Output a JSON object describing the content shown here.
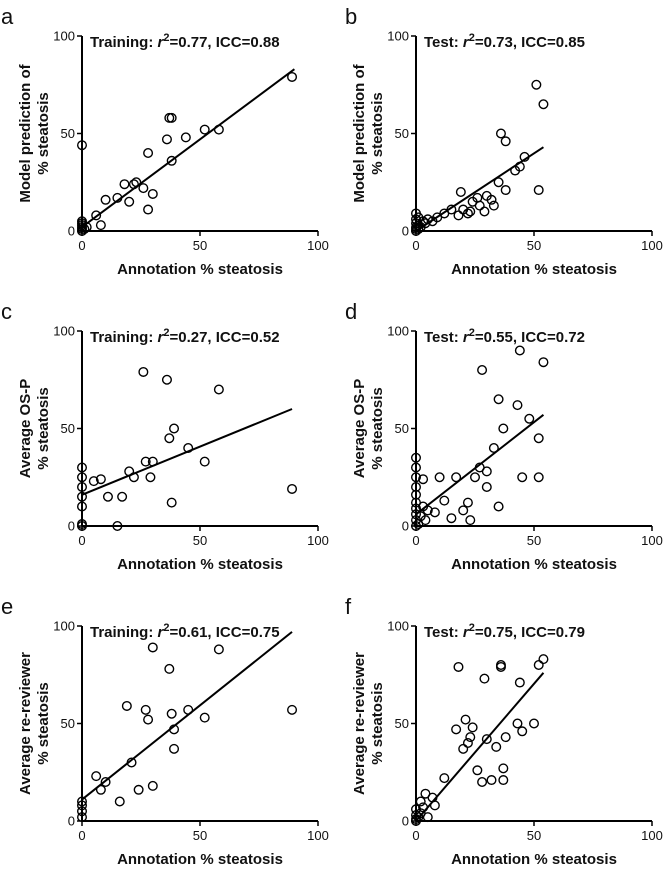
{
  "chart_data": [
    {
      "type": "scatter",
      "panel": "a",
      "title_prefix": "Training: ",
      "r2_value": "=0.77, ICC=0.88",
      "ylabel": [
        "Model prediction of",
        "% steatosis"
      ],
      "xlabel": "Annotation % steatosis",
      "xlim": [
        0,
        100
      ],
      "ylim": [
        0,
        100
      ],
      "x_ticks": [
        "0",
        "50",
        "100"
      ],
      "y_ticks": [
        "0",
        "50",
        "100"
      ],
      "fit_line": [
        [
          0,
          2
        ],
        [
          90,
          83
        ]
      ],
      "points": [
        [
          0,
          44
        ],
        [
          0,
          0
        ],
        [
          0,
          1
        ],
        [
          0,
          2
        ],
        [
          0,
          3
        ],
        [
          0,
          4
        ],
        [
          0,
          5
        ],
        [
          1,
          1
        ],
        [
          2,
          2
        ],
        [
          6,
          8
        ],
        [
          8,
          3
        ],
        [
          10,
          16
        ],
        [
          15,
          17
        ],
        [
          18,
          24
        ],
        [
          20,
          15
        ],
        [
          22,
          24
        ],
        [
          23,
          25
        ],
        [
          26,
          22
        ],
        [
          28,
          11
        ],
        [
          28,
          40
        ],
        [
          30,
          19
        ],
        [
          36,
          47
        ],
        [
          37,
          58
        ],
        [
          38,
          58
        ],
        [
          38,
          36
        ],
        [
          44,
          48
        ],
        [
          52,
          52
        ],
        [
          58,
          52
        ],
        [
          89,
          79
        ]
      ]
    },
    {
      "type": "scatter",
      "panel": "b",
      "title_prefix": "Test: ",
      "r2_value": "=0.73, ICC=0.85",
      "ylabel": [
        "Model prediction of",
        "% steatosis"
      ],
      "xlabel": "Annotation % steatosis",
      "xlim": [
        0,
        100
      ],
      "ylim": [
        0,
        100
      ],
      "x_ticks": [
        "0",
        "50",
        "100"
      ],
      "y_ticks": [
        "0",
        "50",
        "100"
      ],
      "fit_line": [
        [
          0,
          0
        ],
        [
          54,
          43
        ]
      ],
      "points": [
        [
          0,
          0
        ],
        [
          0,
          1
        ],
        [
          0,
          2
        ],
        [
          0,
          4
        ],
        [
          0,
          6
        ],
        [
          0,
          9
        ],
        [
          1,
          1
        ],
        [
          1,
          3
        ],
        [
          1,
          7
        ],
        [
          2,
          2
        ],
        [
          3,
          5
        ],
        [
          4,
          4
        ],
        [
          5,
          6
        ],
        [
          7,
          5
        ],
        [
          9,
          7
        ],
        [
          12,
          9
        ],
        [
          15,
          11
        ],
        [
          18,
          8
        ],
        [
          19,
          20
        ],
        [
          20,
          11
        ],
        [
          22,
          9
        ],
        [
          23,
          10
        ],
        [
          24,
          15
        ],
        [
          26,
          17
        ],
        [
          27,
          13
        ],
        [
          29,
          10
        ],
        [
          30,
          18
        ],
        [
          32,
          16
        ],
        [
          33,
          13
        ],
        [
          35,
          25
        ],
        [
          36,
          50
        ],
        [
          38,
          46
        ],
        [
          38,
          21
        ],
        [
          42,
          31
        ],
        [
          44,
          33
        ],
        [
          46,
          38
        ],
        [
          51,
          75
        ],
        [
          52,
          21
        ],
        [
          54,
          65
        ]
      ]
    },
    {
      "type": "scatter",
      "panel": "c",
      "title_prefix": "Training: ",
      "r2_value": "=0.27, ICC=0.52",
      "ylabel": [
        "Average OS-P",
        "% steatosis"
      ],
      "xlabel": "Annotation % steatosis",
      "xlim": [
        0,
        100
      ],
      "ylim": [
        0,
        100
      ],
      "x_ticks": [
        "0",
        "50",
        "100"
      ],
      "y_ticks": [
        "0",
        "50",
        "100"
      ],
      "fit_line": [
        [
          0,
          16
        ],
        [
          89,
          60
        ]
      ],
      "points": [
        [
          0,
          0
        ],
        [
          0,
          1
        ],
        [
          0,
          10
        ],
        [
          0,
          15
        ],
        [
          0,
          20
        ],
        [
          0,
          25
        ],
        [
          0,
          30
        ],
        [
          5,
          23
        ],
        [
          8,
          24
        ],
        [
          11,
          15
        ],
        [
          15,
          0
        ],
        [
          17,
          15
        ],
        [
          20,
          28
        ],
        [
          22,
          25
        ],
        [
          26,
          79
        ],
        [
          27,
          33
        ],
        [
          29,
          25
        ],
        [
          30,
          33
        ],
        [
          36,
          75
        ],
        [
          37,
          45
        ],
        [
          38,
          12
        ],
        [
          39,
          50
        ],
        [
          45,
          40
        ],
        [
          52,
          33
        ],
        [
          58,
          70
        ],
        [
          89,
          19
        ]
      ]
    },
    {
      "type": "scatter",
      "panel": "d",
      "title_prefix": "Test: ",
      "r2_value": "=0.55, ICC=0.72",
      "ylabel": [
        "Average OS-P",
        "% steatosis"
      ],
      "xlabel": "Annotation % steatosis",
      "xlim": [
        0,
        100
      ],
      "ylim": [
        0,
        100
      ],
      "x_ticks": [
        "0",
        "50",
        "100"
      ],
      "y_ticks": [
        "0",
        "50",
        "100"
      ],
      "fit_line": [
        [
          0,
          6
        ],
        [
          54,
          57
        ]
      ],
      "points": [
        [
          0,
          0
        ],
        [
          0,
          3
        ],
        [
          0,
          6
        ],
        [
          0,
          9
        ],
        [
          0,
          12
        ],
        [
          0,
          16
        ],
        [
          0,
          20
        ],
        [
          0,
          25
        ],
        [
          0,
          30
        ],
        [
          0,
          35
        ],
        [
          1,
          1
        ],
        [
          2,
          5
        ],
        [
          3,
          10
        ],
        [
          3,
          24
        ],
        [
          4,
          3
        ],
        [
          5,
          8
        ],
        [
          8,
          7
        ],
        [
          10,
          25
        ],
        [
          12,
          13
        ],
        [
          15,
          4
        ],
        [
          17,
          25
        ],
        [
          20,
          8
        ],
        [
          22,
          12
        ],
        [
          23,
          3
        ],
        [
          25,
          25
        ],
        [
          27,
          30
        ],
        [
          28,
          80
        ],
        [
          30,
          20
        ],
        [
          30,
          28
        ],
        [
          33,
          40
        ],
        [
          35,
          65
        ],
        [
          35,
          10
        ],
        [
          37,
          50
        ],
        [
          43,
          62
        ],
        [
          44,
          90
        ],
        [
          45,
          25
        ],
        [
          48,
          55
        ],
        [
          52,
          25
        ],
        [
          52,
          45
        ],
        [
          54,
          84
        ]
      ]
    },
    {
      "type": "scatter",
      "panel": "e",
      "title_prefix": "Training: ",
      "r2_value": "=0.61, ICC=0.75",
      "ylabel": [
        "Average re-reviewer",
        "% steatosis"
      ],
      "xlabel": "Annotation % steatosis",
      "xlim": [
        0,
        100
      ],
      "ylim": [
        0,
        100
      ],
      "x_ticks": [
        "0",
        "50",
        "100"
      ],
      "y_ticks": [
        "0",
        "50",
        "100"
      ],
      "fit_line": [
        [
          0,
          11
        ],
        [
          89,
          97
        ]
      ],
      "points": [
        [
          0,
          2
        ],
        [
          0,
          5
        ],
        [
          0,
          8
        ],
        [
          0,
          10
        ],
        [
          6,
          23
        ],
        [
          8,
          16
        ],
        [
          10,
          20
        ],
        [
          16,
          10
        ],
        [
          19,
          59
        ],
        [
          21,
          30
        ],
        [
          24,
          16
        ],
        [
          27,
          57
        ],
        [
          28,
          52
        ],
        [
          30,
          18
        ],
        [
          30,
          89
        ],
        [
          37,
          78
        ],
        [
          38,
          55
        ],
        [
          39,
          47
        ],
        [
          39,
          37
        ],
        [
          45,
          57
        ],
        [
          52,
          53
        ],
        [
          58,
          88
        ],
        [
          89,
          57
        ]
      ]
    },
    {
      "type": "scatter",
      "panel": "f",
      "title_prefix": "Test: ",
      "r2_value": "=0.75, ICC=0.79",
      "ylabel": [
        "Average re-reviewer",
        "% steatosis"
      ],
      "xlabel": "Annotation % steatosis",
      "xlim": [
        0,
        100
      ],
      "ylim": [
        0,
        100
      ],
      "x_ticks": [
        "0",
        "50",
        "100"
      ],
      "y_ticks": [
        "0",
        "50",
        "100"
      ],
      "fit_line": [
        [
          0,
          0
        ],
        [
          54,
          76
        ]
      ],
      "points": [
        [
          0,
          0
        ],
        [
          0,
          1
        ],
        [
          0,
          3
        ],
        [
          0,
          6
        ],
        [
          1,
          2
        ],
        [
          2,
          4
        ],
        [
          2,
          10
        ],
        [
          3,
          7
        ],
        [
          4,
          14
        ],
        [
          5,
          2
        ],
        [
          7,
          12
        ],
        [
          8,
          8
        ],
        [
          12,
          22
        ],
        [
          17,
          47
        ],
        [
          18,
          79
        ],
        [
          20,
          37
        ],
        [
          21,
          52
        ],
        [
          22,
          40
        ],
        [
          23,
          43
        ],
        [
          24,
          48
        ],
        [
          26,
          26
        ],
        [
          28,
          20
        ],
        [
          29,
          73
        ],
        [
          30,
          42
        ],
        [
          32,
          21
        ],
        [
          34,
          38
        ],
        [
          36,
          80
        ],
        [
          36,
          79
        ],
        [
          37,
          27
        ],
        [
          37,
          21
        ],
        [
          38,
          43
        ],
        [
          43,
          50
        ],
        [
          44,
          71
        ],
        [
          45,
          46
        ],
        [
          50,
          50
        ],
        [
          52,
          80
        ],
        [
          54,
          83
        ]
      ]
    }
  ]
}
